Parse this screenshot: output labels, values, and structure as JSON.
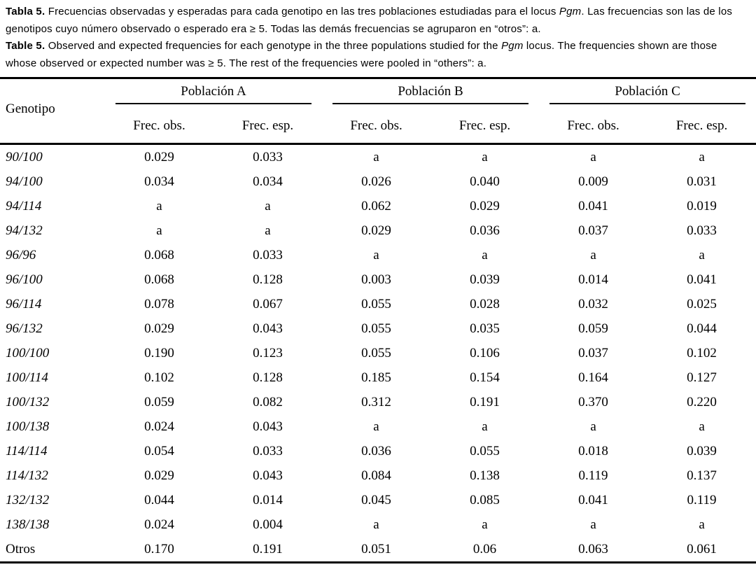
{
  "colors": {
    "text": "#000000",
    "background": "#ffffff"
  },
  "caption": {
    "es": {
      "label": "Tabla 5.",
      "before_italic": " Frecuencias observadas y esperadas para cada genotipo en las tres poblaciones estudiadas para el locus ",
      "italic": "Pgm",
      "after_italic": ". Las frecuencias son las de los genotipos cuyo número observado o esperado era ≥ 5. Todas las demás frecuencias se agruparon en “otros”: a."
    },
    "en": {
      "label": "Table 5.",
      "before_italic": " Observed and expected frequencies for each genotype in the three populations studied for the ",
      "italic": "Pgm",
      "after_italic": " locus. The frequencies shown are those whose observed or expected number was ≥ 5. The rest of the frequencies were pooled in “others”: a."
    }
  },
  "table": {
    "genotype_header": "Genotipo",
    "groups": [
      {
        "label": "Población A"
      },
      {
        "label": "Población B"
      },
      {
        "label": "Población C"
      }
    ],
    "subheaders": [
      "Frec. obs.",
      "Frec. esp."
    ],
    "rows": [
      {
        "genotype": "90/100",
        "italic": true,
        "values": [
          "0.029",
          "0.033",
          "a",
          "a",
          "a",
          "a"
        ]
      },
      {
        "genotype": "94/100",
        "italic": true,
        "values": [
          "0.034",
          "0.034",
          "0.026",
          "0.040",
          "0.009",
          "0.031"
        ]
      },
      {
        "genotype": "94/114",
        "italic": true,
        "values": [
          "a",
          "a",
          "0.062",
          "0.029",
          "0.041",
          "0.019"
        ]
      },
      {
        "genotype": "94/132",
        "italic": true,
        "values": [
          "a",
          "a",
          "0.029",
          "0.036",
          "0.037",
          "0.033"
        ]
      },
      {
        "genotype": "96/96",
        "italic": true,
        "values": [
          "0.068",
          "0.033",
          "a",
          "a",
          "a",
          "a"
        ]
      },
      {
        "genotype": "96/100",
        "italic": true,
        "values": [
          "0.068",
          "0.128",
          "0.003",
          "0.039",
          "0.014",
          "0.041"
        ]
      },
      {
        "genotype": "96/114",
        "italic": true,
        "values": [
          "0.078",
          "0.067",
          "0.055",
          "0.028",
          "0.032",
          "0.025"
        ]
      },
      {
        "genotype": "96/132",
        "italic": true,
        "values": [
          "0.029",
          "0.043",
          "0.055",
          "0.035",
          "0.059",
          "0.044"
        ]
      },
      {
        "genotype": "100/100",
        "italic": true,
        "values": [
          "0.190",
          "0.123",
          "0.055",
          "0.106",
          "0.037",
          "0.102"
        ]
      },
      {
        "genotype": "100/114",
        "italic": true,
        "values": [
          "0.102",
          "0.128",
          "0.185",
          "0.154",
          "0.164",
          "0.127"
        ]
      },
      {
        "genotype": "100/132",
        "italic": true,
        "values": [
          "0.059",
          "0.082",
          "0.312",
          "0.191",
          "0.370",
          "0.220"
        ]
      },
      {
        "genotype": "100/138",
        "italic": true,
        "values": [
          "0.024",
          "0.043",
          "a",
          "a",
          "a",
          "a"
        ]
      },
      {
        "genotype": "114/114",
        "italic": true,
        "values": [
          "0.054",
          "0.033",
          "0.036",
          "0.055",
          "0.018",
          "0.039"
        ]
      },
      {
        "genotype": "114/132",
        "italic": true,
        "values": [
          "0.029",
          "0.043",
          "0.084",
          "0.138",
          "0.119",
          "0.137"
        ]
      },
      {
        "genotype": "132/132",
        "italic": true,
        "values": [
          "0.044",
          "0.014",
          "0.045",
          "0.085",
          "0.041",
          "0.119"
        ]
      },
      {
        "genotype": "138/138",
        "italic": true,
        "values": [
          "0.024",
          "0.004",
          "a",
          "a",
          "a",
          "a"
        ]
      },
      {
        "genotype": "Otros",
        "italic": false,
        "values": [
          "0.170",
          "0.191",
          "0.051",
          "0.06",
          "0.063",
          "0.061"
        ]
      }
    ]
  }
}
